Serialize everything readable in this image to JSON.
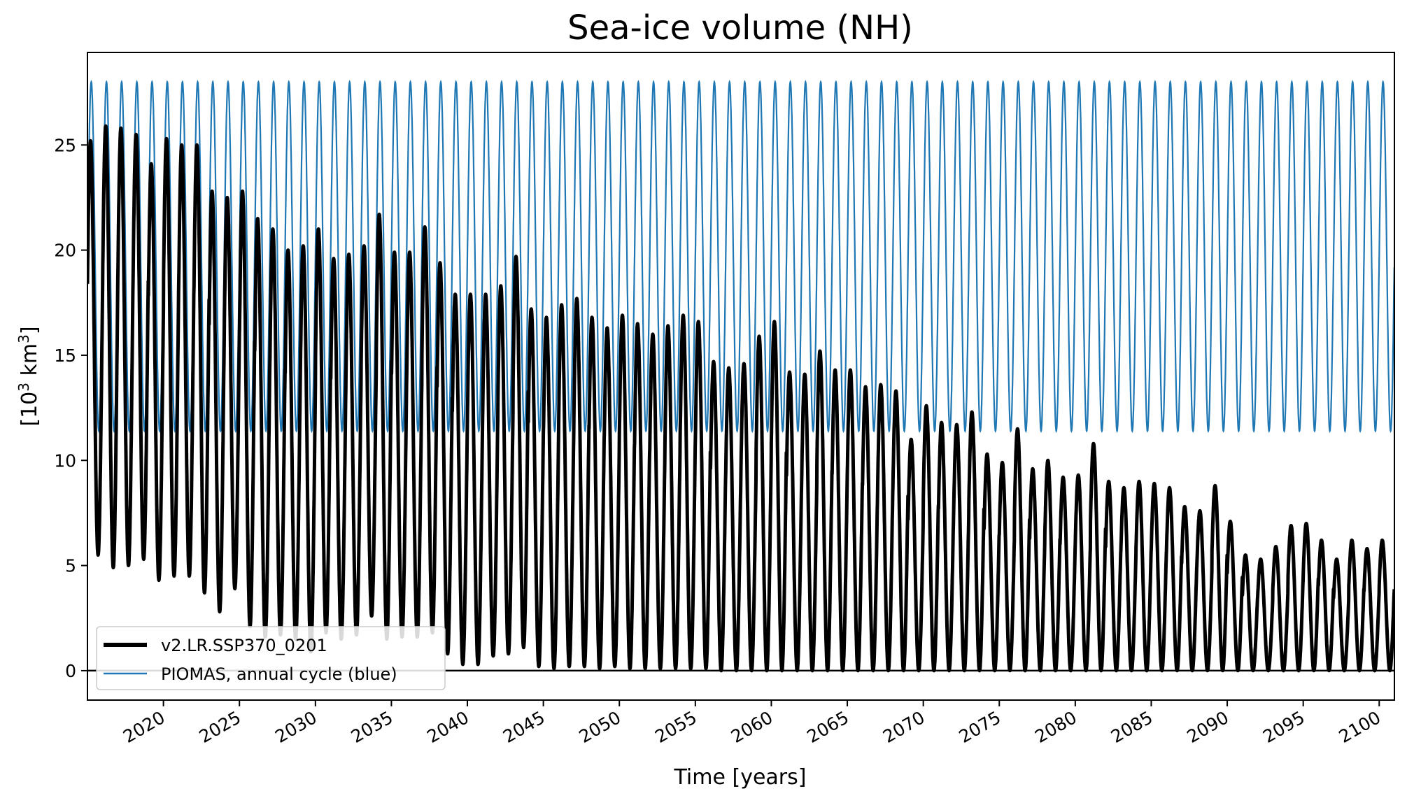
{
  "chart_data": {
    "type": "line",
    "title": "Sea-ice volume (NH)",
    "xlabel": "Time [years]",
    "ylabel_base": "[10",
    "ylabel_sup": "3",
    "ylabel_mid": " km",
    "ylabel_sup2": "3",
    "ylabel_end": "]",
    "xlim": [
      2015,
      2101
    ],
    "ylim": [
      -1.4,
      29.4
    ],
    "xticks": [
      2020,
      2025,
      2030,
      2035,
      2040,
      2045,
      2050,
      2055,
      2060,
      2065,
      2070,
      2075,
      2080,
      2085,
      2090,
      2095,
      2100
    ],
    "yticks": [
      0,
      5,
      10,
      15,
      20,
      25
    ],
    "zero_line": 0,
    "legend_position": "lower-left",
    "colors": {
      "model": "#000000",
      "piomas": "#1f77b4",
      "frame": "#000000"
    },
    "series": [
      {
        "name": "v2.LR.SSP370_0201",
        "color": "#000000",
        "annual_max": [
          25.2,
          25.9,
          25.8,
          25.5,
          24.1,
          25.3,
          25.0,
          25.0,
          22.8,
          22.5,
          22.8,
          21.5,
          21.0,
          20.0,
          20.2,
          21.0,
          19.6,
          19.8,
          20.2,
          21.7,
          19.9,
          19.9,
          21.1,
          19.4,
          17.9,
          17.9,
          17.9,
          18.3,
          19.7,
          17.2,
          16.8,
          17.4,
          17.7,
          16.8,
          16.3,
          16.9,
          16.5,
          16.0,
          16.4,
          16.9,
          16.6,
          14.7,
          14.4,
          14.6,
          15.9,
          16.6,
          14.2,
          14.1,
          15.2,
          14.3,
          14.3,
          13.5,
          13.6,
          13.3,
          11.0,
          12.6,
          11.8,
          11.7,
          12.3,
          10.3,
          9.9,
          11.5,
          9.6,
          10.0,
          9.2,
          9.3,
          10.8,
          9.0,
          8.7,
          9.0,
          8.9,
          8.7,
          7.8,
          7.6,
          8.8,
          7.1,
          5.5,
          5.3,
          5.9,
          6.9,
          7.0,
          6.2,
          5.3,
          6.2,
          5.8,
          6.2
        ],
        "annual_min": [
          5.5,
          4.9,
          5.0,
          5.3,
          4.3,
          4.5,
          4.5,
          3.7,
          2.8,
          3.9,
          2.1,
          1.6,
          1.7,
          1.5,
          0.9,
          1.8,
          1.5,
          1.7,
          2.6,
          1.5,
          1.6,
          1.6,
          1.8,
          0.8,
          0.3,
          0.3,
          0.7,
          0.8,
          1.1,
          0.2,
          0.1,
          0.2,
          0.2,
          0.1,
          0.2,
          0.1,
          0.1,
          0.1,
          0.1,
          0.1,
          0.1,
          0.0,
          0.0,
          0.0,
          0.0,
          0.0,
          0.0,
          0.0,
          0.0,
          0.0,
          0.0,
          0.0,
          0.0,
          0.0,
          0.0,
          0.0,
          0.0,
          0.0,
          0.0,
          0.0,
          0.0,
          0.0,
          0.0,
          0.0,
          0.0,
          0.0,
          0.0,
          0.0,
          0.0,
          0.0,
          0.0,
          0.0,
          0.0,
          0.0,
          0.0,
          0.0,
          0.0,
          0.0,
          0.0,
          0.0,
          0.0,
          0.0,
          0.0,
          0.0,
          0.0,
          0.0
        ]
      },
      {
        "name": "PIOMAS, annual cycle (blue)",
        "color": "#1f77b4",
        "annual_max_value": 28.0,
        "annual_min_value": 11.4
      }
    ]
  }
}
